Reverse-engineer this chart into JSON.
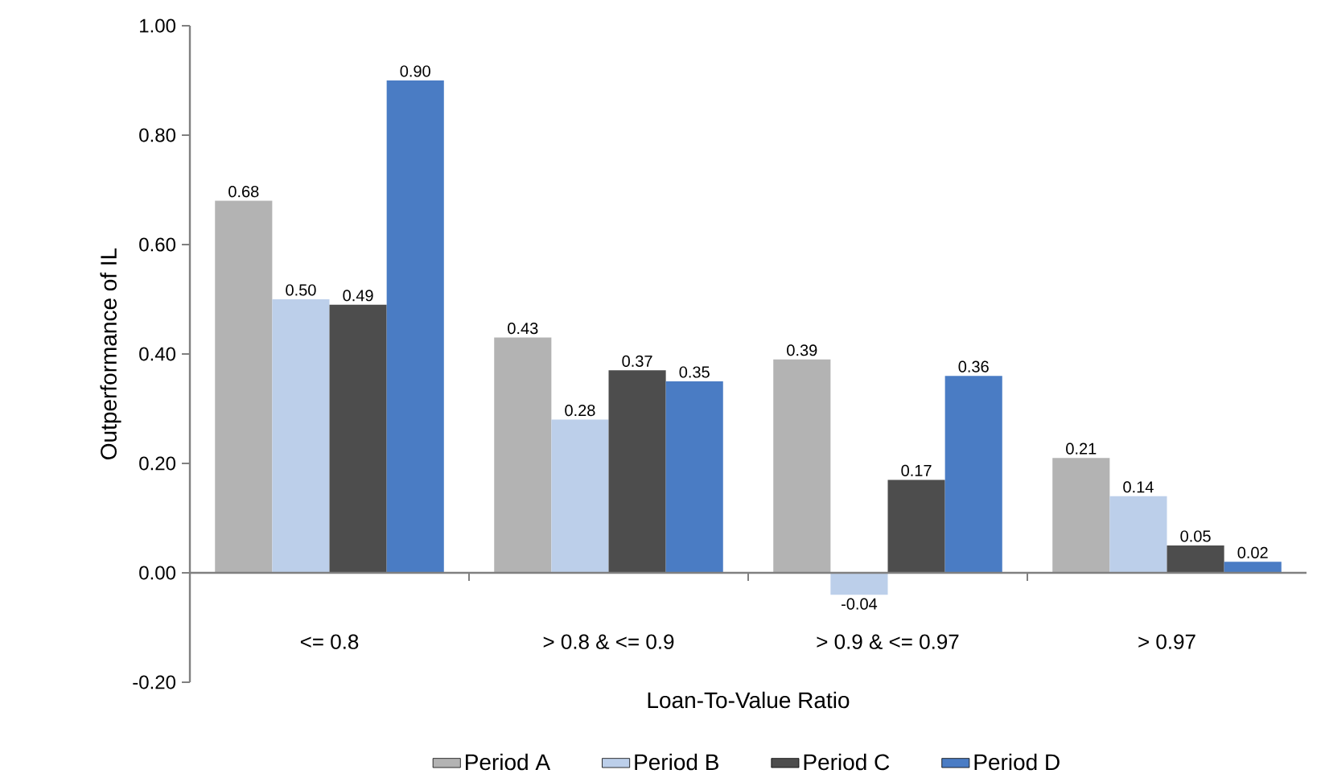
{
  "chart_data": {
    "type": "bar",
    "xlabel": "Loan-To-Value Ratio",
    "ylabel": "Outperformance of IL",
    "categories": [
      "<= 0.8",
      "> 0.8 & <= 0.9",
      "> 0.9 & <= 0.97",
      "> 0.97"
    ],
    "series": [
      {
        "name": "Period A",
        "color": "#b3b3b3",
        "values": [
          0.68,
          0.43,
          0.39,
          0.21
        ],
        "value_labels": [
          "0.68",
          "0.43",
          "0.39",
          "0.21"
        ]
      },
      {
        "name": "Period B",
        "color": "#bccfea",
        "values": [
          0.5,
          0.28,
          -0.04,
          0.14
        ],
        "value_labels": [
          "0.50",
          "0.28",
          "-0.04",
          "0.14"
        ]
      },
      {
        "name": "Period C",
        "color": "#4d4d4d",
        "values": [
          0.49,
          0.37,
          0.17,
          0.05
        ],
        "value_labels": [
          "0.49",
          "0.37",
          "0.17",
          "0.05"
        ]
      },
      {
        "name": "Period D",
        "color": "#4a7cc4",
        "values": [
          0.9,
          0.35,
          0.36,
          0.02
        ],
        "value_labels": [
          "0.90",
          "0.35",
          "0.36",
          "0.02"
        ]
      }
    ],
    "ylim": [
      -0.2,
      1.0
    ],
    "yticks": [
      {
        "value": -0.2,
        "label": "-0.20"
      },
      {
        "value": 0,
        "label": "0.00"
      },
      {
        "value": 0.2,
        "label": "0.20"
      },
      {
        "value": 0.4,
        "label": "0.40"
      },
      {
        "value": 0.6,
        "label": "0.60"
      },
      {
        "value": 0.8,
        "label": "0.80"
      },
      {
        "value": 1.0,
        "label": "1.00"
      }
    ],
    "legend": "bottom"
  }
}
